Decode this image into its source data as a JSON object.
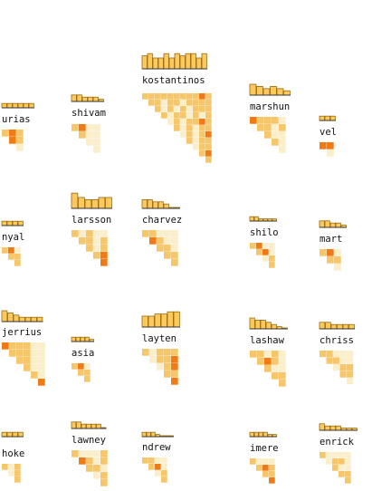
{
  "chart_data": {
    "type": "heatmap",
    "description_colors": {
      "bar_fill": "#fcc95d",
      "bar_stroke": "#9a6a10",
      "cell_low": "#fbeecb",
      "cell_mid": "#f5c66a",
      "cell_high": "#ef7a16"
    },
    "panels": [
      {
        "label": "urias",
        "bars": [
          2,
          2,
          2,
          2,
          2,
          2
        ],
        "cells": [
          [
            2,
            3,
            2
          ],
          [
            3,
            2
          ],
          [
            1
          ]
        ]
      },
      {
        "label": "shivam",
        "bars": [
          3,
          3,
          2,
          2,
          2,
          1
        ],
        "cells": [
          [
            2,
            3,
            1,
            1
          ],
          [
            2,
            1,
            1
          ],
          [
            1,
            1
          ],
          [
            1
          ]
        ]
      },
      {
        "label": "kostantinos",
        "bars": [
          6,
          7,
          5,
          5,
          7,
          5,
          7,
          6,
          7,
          7,
          5,
          7
        ],
        "cells": [
          [
            2,
            2,
            2,
            2,
            2,
            2,
            2,
            2,
            2,
            3,
            2
          ],
          [
            2,
            2,
            1,
            2,
            2,
            1,
            2,
            2,
            2,
            2
          ],
          [
            2,
            1,
            2,
            1,
            2,
            1,
            2,
            2,
            2
          ],
          [
            2,
            1,
            2,
            2,
            1,
            2,
            1,
            2
          ],
          [
            1,
            2,
            1,
            2,
            2,
            3,
            2
          ],
          [
            2,
            1,
            2,
            1,
            2,
            2
          ],
          [
            1,
            2,
            1,
            2,
            3
          ],
          [
            2,
            1,
            2,
            2
          ],
          [
            1,
            2,
            2
          ],
          [
            2,
            3
          ],
          [
            2
          ]
        ]
      },
      {
        "label": "marshun",
        "bars": [
          5,
          4,
          3,
          4,
          3,
          2
        ],
        "cells": [
          [
            3,
            2,
            2,
            2,
            1
          ],
          [
            2,
            2,
            1,
            2
          ],
          [
            2,
            1,
            1
          ],
          [
            2,
            1
          ],
          [
            1
          ]
        ]
      },
      {
        "label": "vel",
        "bars": [
          2,
          2,
          2
        ],
        "cells": [
          [
            3,
            3
          ],
          [
            1
          ]
        ]
      },
      {
        "label": "nyal",
        "bars": [
          2,
          2,
          2,
          2
        ],
        "cells": [
          [
            2,
            3,
            1
          ],
          [
            2,
            2
          ],
          [
            2
          ]
        ]
      },
      {
        "label": "larsson",
        "bars": [
          7,
          5,
          4,
          4,
          5,
          5
        ],
        "cells": [
          [
            2,
            1,
            2,
            1,
            1
          ],
          [
            2,
            2,
            1,
            2
          ],
          [
            2,
            1,
            2
          ],
          [
            2,
            3
          ],
          [
            3
          ]
        ]
      },
      {
        "label": "charvez",
        "bars": [
          4,
          4,
          3,
          3,
          2,
          0,
          0
        ],
        "cells": [
          [
            2,
            2,
            1,
            1,
            1
          ],
          [
            3,
            2,
            1,
            1
          ],
          [
            2,
            2,
            1
          ],
          [
            2,
            2
          ],
          [
            2
          ]
        ]
      },
      {
        "label": "shilo",
        "bars": [
          2,
          2,
          1,
          1,
          1,
          1
        ],
        "cells": [
          [
            2,
            3,
            1,
            1
          ],
          [
            2,
            3,
            1
          ],
          [
            1,
            2
          ],
          [
            2
          ]
        ]
      },
      {
        "label": "mart",
        "bars": [
          3,
          3,
          2,
          2,
          1
        ],
        "cells": [
          [
            2,
            3,
            1
          ],
          [
            2,
            2
          ],
          [
            1
          ]
        ]
      },
      {
        "label": "jerrius",
        "bars": [
          5,
          4,
          3,
          2,
          2,
          2,
          2
        ],
        "cells": [
          [
            3,
            2,
            2,
            2,
            1,
            1
          ],
          [
            2,
            2,
            2,
            1,
            1
          ],
          [
            2,
            2,
            1,
            1
          ],
          [
            2,
            1,
            1
          ],
          [
            2,
            1
          ],
          [
            3
          ]
        ]
      },
      {
        "label": "asia",
        "bars": [
          2,
          2,
          2,
          2,
          1
        ],
        "cells": [
          [
            2,
            3,
            1
          ],
          [
            2,
            2
          ],
          [
            2
          ]
        ]
      },
      {
        "label": "layten",
        "bars": [
          5,
          5,
          6,
          6,
          7,
          7
        ],
        "cells": [
          [
            2,
            1,
            2,
            2,
            2
          ],
          [
            1,
            2,
            2,
            3
          ],
          [
            1,
            2,
            3
          ],
          [
            2,
            2
          ],
          [
            3
          ]
        ]
      },
      {
        "label": "lashaw",
        "bars": [
          5,
          4,
          4,
          3,
          2,
          1,
          0
        ],
        "cells": [
          [
            2,
            2,
            1,
            2,
            1
          ],
          [
            2,
            3,
            2,
            1
          ],
          [
            2,
            1,
            1
          ],
          [
            2,
            2
          ],
          [
            2
          ]
        ]
      },
      {
        "label": "chriss",
        "bars": [
          3,
          3,
          2,
          2,
          2,
          2
        ],
        "cells": [
          [
            2,
            2,
            1,
            1,
            1
          ],
          [
            2,
            2,
            1,
            1
          ],
          [
            1,
            2,
            2
          ],
          [
            2,
            2
          ],
          [
            1
          ]
        ]
      },
      {
        "label": "hoke",
        "bars": [
          2,
          2,
          2,
          2
        ],
        "cells": [
          [
            2,
            1,
            2
          ],
          [
            1,
            2
          ],
          [
            2
          ]
        ]
      },
      {
        "label": "lawney",
        "bars": [
          3,
          3,
          2,
          2,
          2,
          2,
          0
        ],
        "cells": [
          [
            2,
            1,
            1,
            1,
            2
          ],
          [
            3,
            2,
            1,
            2
          ],
          [
            2,
            2,
            1
          ],
          [
            1,
            2
          ],
          [
            2
          ]
        ]
      },
      {
        "label": "ndrew",
        "bars": [
          2,
          2,
          2,
          1,
          0,
          0,
          0
        ],
        "cells": [
          [
            2,
            2,
            1,
            1
          ],
          [
            2,
            3,
            1
          ],
          [
            1,
            2
          ],
          [
            2
          ]
        ]
      },
      {
        "label": "imere",
        "bars": [
          2,
          2,
          2,
          2,
          1,
          1
        ],
        "cells": [
          [
            2,
            1,
            1,
            1
          ],
          [
            2,
            3,
            2
          ],
          [
            2,
            2
          ],
          [
            3
          ]
        ]
      },
      {
        "label": "enrick",
        "bars": [
          3,
          2,
          2,
          2,
          1,
          1,
          1
        ],
        "cells": [
          [
            2,
            1,
            1,
            1,
            1
          ],
          [
            1,
            2,
            2,
            1
          ],
          [
            2,
            1,
            1
          ],
          [
            2,
            2
          ],
          [
            2
          ]
        ]
      }
    ]
  }
}
